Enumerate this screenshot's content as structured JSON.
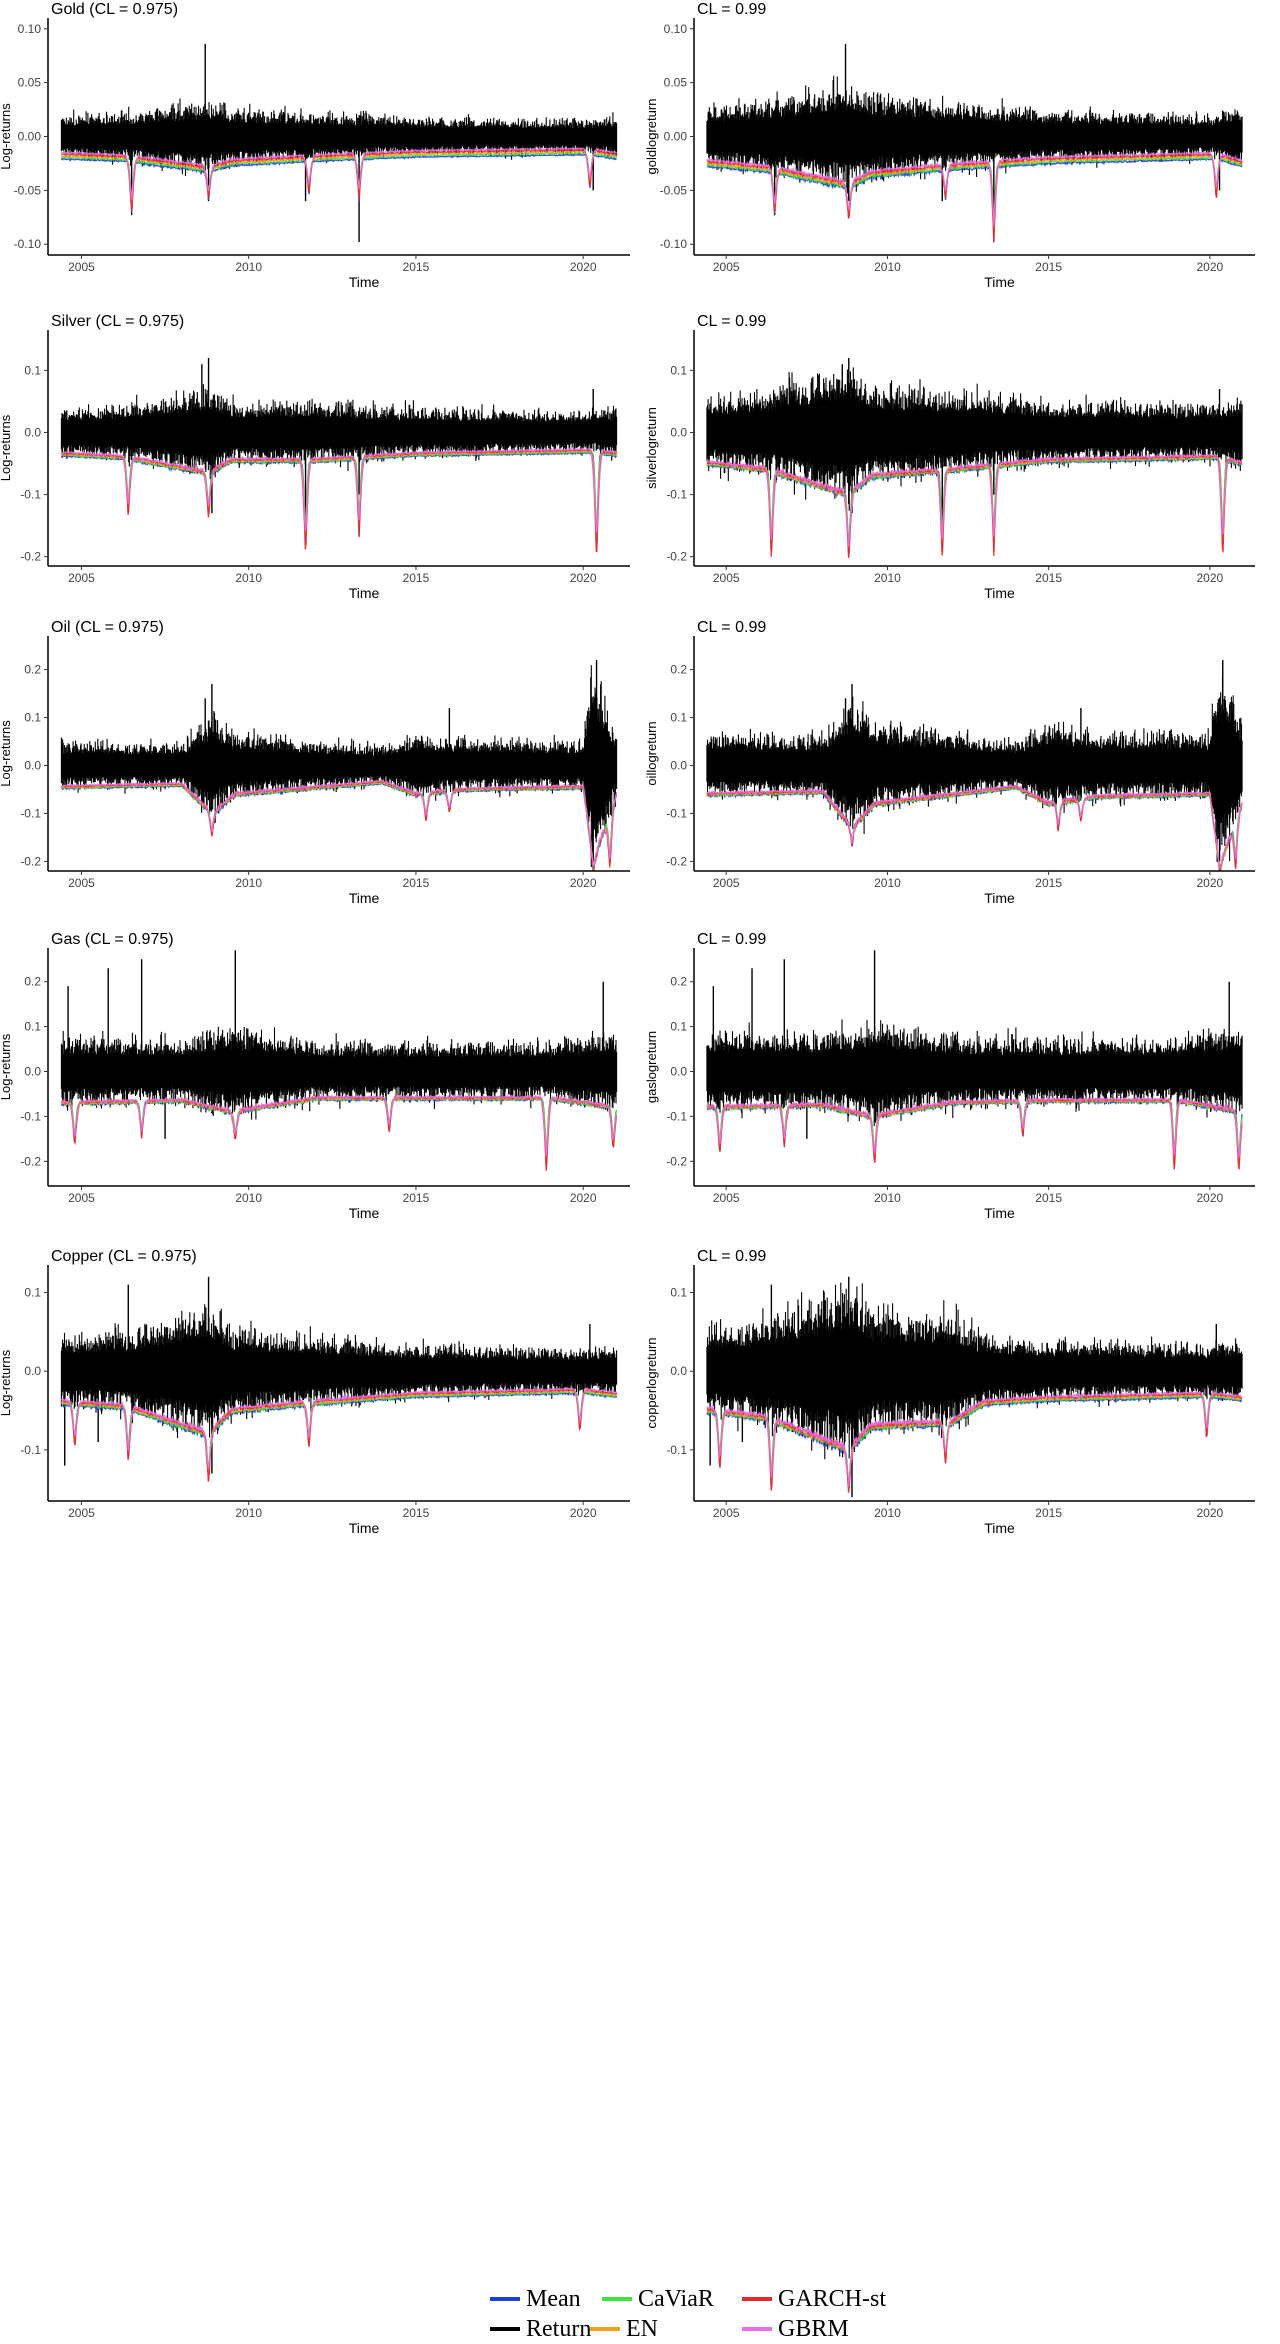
{
  "colors": {
    "Return": "#000000",
    "Mean": "#1f3fd6",
    "CaViaR": "#3fe23f",
    "EN": "#f5a020",
    "GARCH-st": "#e42a2a",
    "GBRM": "#e46ee6"
  },
  "legend": {
    "mean": "Mean",
    "caviar": "CaViaR",
    "garch": "GARCH-st",
    "return": "Return",
    "en": "EN",
    "gbrm": "GBRM"
  },
  "chart_data": [
    {
      "type": "line",
      "title": "Gold (CL = 0.975)",
      "xlabel": "Time",
      "ylabel": "Log-returns",
      "xlim": [
        2004.0,
        2021.4
      ],
      "ylim": [
        -0.11,
        0.11
      ],
      "xticks": [
        2005,
        2010,
        2015,
        2020
      ],
      "yticks": [
        0.1,
        0.05,
        0.0,
        -0.05,
        -0.1
      ],
      "ytick_labels": [
        "0.10",
        "0.05",
        "0.00",
        "-0.05",
        "-0.10"
      ],
      "series_names": [
        "Return",
        "Mean",
        "CaViaR",
        "EN",
        "GARCH-st",
        "GBRM"
      ],
      "var_baseline": [
        [
          2004.5,
          -0.018
        ],
        [
          2006.3,
          -0.02
        ],
        [
          2008.8,
          -0.03
        ],
        [
          2009.5,
          -0.024
        ],
        [
          2012,
          -0.02
        ],
        [
          2015,
          -0.016
        ],
        [
          2020.2,
          -0.014
        ],
        [
          2021,
          -0.018
        ]
      ],
      "var_dips": [
        [
          2006.5,
          -0.075
        ],
        [
          2008.8,
          -0.06
        ],
        [
          2011.8,
          -0.055
        ],
        [
          2013.3,
          -0.06
        ],
        [
          2020.2,
          -0.05
        ]
      ],
      "return_spikes": [
        [
          2008.7,
          0.086
        ],
        [
          2008.8,
          -0.06
        ],
        [
          2013.3,
          -0.098
        ],
        [
          2011.7,
          -0.06
        ],
        [
          2006.5,
          -0.073
        ],
        [
          2020.3,
          -0.05
        ]
      ]
    },
    {
      "type": "line",
      "title": "CL = 0.99",
      "xlabel": "Time",
      "ylabel": "goldlogreturn",
      "xlim": [
        2004.0,
        2021.4
      ],
      "ylim": [
        -0.11,
        0.11
      ],
      "xticks": [
        2005,
        2010,
        2015,
        2020
      ],
      "yticks": [
        0.1,
        0.05,
        0.0,
        -0.05,
        -0.1
      ],
      "ytick_labels": [
        "0.10",
        "0.05",
        "0.00",
        "-0.05",
        "-0.10"
      ],
      "series_names": [
        "Return",
        "Mean",
        "CaViaR",
        "EN",
        "GARCH-st",
        "GBRM"
      ],
      "var_baseline": [
        [
          2004.5,
          -0.025
        ],
        [
          2006.3,
          -0.03
        ],
        [
          2008.8,
          -0.045
        ],
        [
          2009.5,
          -0.035
        ],
        [
          2012,
          -0.028
        ],
        [
          2015,
          -0.022
        ],
        [
          2020.2,
          -0.018
        ],
        [
          2021,
          -0.025
        ]
      ],
      "var_dips": [
        [
          2006.5,
          -0.075
        ],
        [
          2008.8,
          -0.08
        ],
        [
          2011.8,
          -0.06
        ],
        [
          2013.3,
          -0.1
        ],
        [
          2020.2,
          -0.06
        ]
      ],
      "return_spikes": [
        [
          2008.7,
          0.086
        ],
        [
          2008.8,
          -0.06
        ],
        [
          2013.3,
          -0.098
        ],
        [
          2011.7,
          -0.06
        ],
        [
          2006.5,
          -0.073
        ],
        [
          2020.3,
          -0.05
        ]
      ]
    },
    {
      "type": "line",
      "title": "Silver (CL = 0.975)",
      "xlabel": "Time",
      "ylabel": "Log-returns",
      "xlim": [
        2004.0,
        2021.4
      ],
      "ylim": [
        -0.215,
        0.165
      ],
      "xticks": [
        2005,
        2010,
        2015,
        2020
      ],
      "yticks": [
        0.1,
        0.0,
        -0.1,
        -0.2
      ],
      "ytick_labels": [
        "0.1",
        "0.0",
        "-0.1",
        "-0.2"
      ],
      "series_names": [
        "Return",
        "Mean",
        "CaViaR",
        "EN",
        "GARCH-st",
        "GBRM"
      ],
      "var_baseline": [
        [
          2004.5,
          -0.035
        ],
        [
          2006.3,
          -0.04
        ],
        [
          2008.8,
          -0.065
        ],
        [
          2009.5,
          -0.045
        ],
        [
          2012,
          -0.045
        ],
        [
          2015,
          -0.035
        ],
        [
          2020.2,
          -0.03
        ],
        [
          2021,
          -0.035
        ]
      ],
      "var_dips": [
        [
          2006.4,
          -0.14
        ],
        [
          2008.8,
          -0.14
        ],
        [
          2011.7,
          -0.2
        ],
        [
          2013.3,
          -0.17
        ],
        [
          2020.4,
          -0.21
        ]
      ],
      "return_spikes": [
        [
          2008.8,
          0.12
        ],
        [
          2008.6,
          0.11
        ],
        [
          2008.9,
          -0.13
        ],
        [
          2011.7,
          -0.15
        ],
        [
          2013.3,
          -0.1
        ],
        [
          2020.3,
          0.07
        ]
      ]
    },
    {
      "type": "line",
      "title": "CL = 0.99",
      "xlabel": "Time",
      "ylabel": "silverlogreturn",
      "xlim": [
        2004.0,
        2021.4
      ],
      "ylim": [
        -0.215,
        0.165
      ],
      "xticks": [
        2005,
        2010,
        2015,
        2020
      ],
      "yticks": [
        0.1,
        0.0,
        -0.1,
        -0.2
      ],
      "ytick_labels": [
        "0.1",
        "0.0",
        "-0.1",
        "-0.2"
      ],
      "series_names": [
        "Return",
        "Mean",
        "CaViaR",
        "EN",
        "GARCH-st",
        "GBRM"
      ],
      "var_baseline": [
        [
          2004.5,
          -0.05
        ],
        [
          2006.3,
          -0.06
        ],
        [
          2008.8,
          -0.1
        ],
        [
          2009.5,
          -0.07
        ],
        [
          2012,
          -0.06
        ],
        [
          2015,
          -0.045
        ],
        [
          2020.2,
          -0.04
        ],
        [
          2021,
          -0.05
        ]
      ],
      "var_dips": [
        [
          2006.4,
          -0.21
        ],
        [
          2008.8,
          -0.21
        ],
        [
          2011.7,
          -0.21
        ],
        [
          2013.3,
          -0.2
        ],
        [
          2020.4,
          -0.21
        ]
      ],
      "return_spikes": [
        [
          2008.8,
          0.12
        ],
        [
          2008.6,
          0.11
        ],
        [
          2008.9,
          -0.13
        ],
        [
          2011.7,
          -0.15
        ],
        [
          2013.3,
          -0.1
        ],
        [
          2020.3,
          0.07
        ]
      ]
    },
    {
      "type": "line",
      "title": "Oil (CL = 0.975)",
      "xlabel": "Time",
      "ylabel": "Log-returns",
      "xlim": [
        2004.0,
        2021.4
      ],
      "ylim": [
        -0.22,
        0.27
      ],
      "xticks": [
        2005,
        2010,
        2015,
        2020
      ],
      "yticks": [
        0.2,
        0.1,
        0.0,
        -0.1,
        -0.2
      ],
      "ytick_labels": [
        "0.2",
        "0.1",
        "0.0",
        "-0.1",
        "-0.2"
      ],
      "series_names": [
        "Return",
        "Mean",
        "CaViaR",
        "EN",
        "GARCH-st",
        "GBRM"
      ],
      "var_baseline": [
        [
          2004.5,
          -0.045
        ],
        [
          2008,
          -0.04
        ],
        [
          2008.9,
          -0.1
        ],
        [
          2009.6,
          -0.06
        ],
        [
          2014,
          -0.035
        ],
        [
          2015,
          -0.06
        ],
        [
          2016.5,
          -0.05
        ],
        [
          2020,
          -0.045
        ],
        [
          2020.3,
          -0.2
        ],
        [
          2021,
          -0.06
        ]
      ],
      "var_dips": [
        [
          2008.9,
          -0.15
        ],
        [
          2015.3,
          -0.12
        ],
        [
          2016,
          -0.1
        ],
        [
          2020.3,
          -0.22
        ],
        [
          2020.8,
          -0.22
        ]
      ],
      "return_spikes": [
        [
          2008.9,
          0.17
        ],
        [
          2008.7,
          0.14
        ],
        [
          2020.4,
          0.22
        ],
        [
          2020.3,
          -0.2
        ],
        [
          2009.1,
          -0.1
        ],
        [
          2016,
          0.12
        ]
      ]
    },
    {
      "type": "line",
      "title": "CL = 0.99",
      "xlabel": "Time",
      "ylabel": "oillogreturn",
      "xlim": [
        2004.0,
        2021.4
      ],
      "ylim": [
        -0.22,
        0.27
      ],
      "xticks": [
        2005,
        2010,
        2015,
        2020
      ],
      "yticks": [
        0.2,
        0.1,
        0.0,
        -0.1,
        -0.2
      ],
      "ytick_labels": [
        "0.2",
        "0.1",
        "0.0",
        "-0.1",
        "-0.2"
      ],
      "series_names": [
        "Return",
        "Mean",
        "CaViaR",
        "EN",
        "GARCH-st",
        "GBRM"
      ],
      "var_baseline": [
        [
          2004.5,
          -0.06
        ],
        [
          2008,
          -0.055
        ],
        [
          2008.9,
          -0.13
        ],
        [
          2009.6,
          -0.08
        ],
        [
          2014,
          -0.045
        ],
        [
          2015,
          -0.08
        ],
        [
          2016.5,
          -0.065
        ],
        [
          2020,
          -0.06
        ],
        [
          2020.3,
          -0.21
        ],
        [
          2021,
          -0.08
        ]
      ],
      "var_dips": [
        [
          2008.9,
          -0.17
        ],
        [
          2015.3,
          -0.14
        ],
        [
          2016,
          -0.12
        ],
        [
          2020.3,
          -0.22
        ],
        [
          2020.8,
          -0.22
        ]
      ],
      "return_spikes": [
        [
          2008.9,
          0.17
        ],
        [
          2008.7,
          0.14
        ],
        [
          2020.4,
          0.22
        ],
        [
          2020.3,
          -0.2
        ],
        [
          2009.1,
          -0.1
        ],
        [
          2016,
          0.12
        ]
      ]
    },
    {
      "type": "line",
      "title": "Gas (CL = 0.975)",
      "xlabel": "Time",
      "ylabel": "Log-returns",
      "xlim": [
        2004.0,
        2021.4
      ],
      "ylim": [
        -0.255,
        0.275
      ],
      "xticks": [
        2005,
        2010,
        2015,
        2020
      ],
      "yticks": [
        0.2,
        0.1,
        0.0,
        -0.1,
        -0.2
      ],
      "ytick_labels": [
        "0.2",
        "0.1",
        "0.0",
        "-0.1",
        "-0.2"
      ],
      "series_names": [
        "Return",
        "Mean",
        "CaViaR",
        "EN",
        "GARCH-st",
        "GBRM"
      ],
      "var_baseline": [
        [
          2004.5,
          -0.07
        ],
        [
          2008,
          -0.065
        ],
        [
          2009.5,
          -0.09
        ],
        [
          2012,
          -0.06
        ],
        [
          2015,
          -0.06
        ],
        [
          2019,
          -0.06
        ],
        [
          2021,
          -0.08
        ]
      ],
      "var_dips": [
        [
          2004.8,
          -0.17
        ],
        [
          2006.8,
          -0.15
        ],
        [
          2009.6,
          -0.16
        ],
        [
          2014.2,
          -0.14
        ],
        [
          2018.9,
          -0.23
        ],
        [
          2020.9,
          -0.18
        ]
      ],
      "return_spikes": [
        [
          2009.6,
          0.27
        ],
        [
          2006.8,
          0.25
        ],
        [
          2005.8,
          0.23
        ],
        [
          2004.6,
          0.19
        ],
        [
          2020.6,
          0.2
        ],
        [
          2007.5,
          -0.15
        ]
      ]
    },
    {
      "type": "line",
      "title": "CL = 0.99",
      "xlabel": "Time",
      "ylabel": "gaslogreturn",
      "xlim": [
        2004.0,
        2021.4
      ],
      "ylim": [
        -0.255,
        0.275
      ],
      "xticks": [
        2005,
        2010,
        2015,
        2020
      ],
      "yticks": [
        0.2,
        0.1,
        0.0,
        -0.1,
        -0.2
      ],
      "ytick_labels": [
        "0.2",
        "0.1",
        "0.0",
        "-0.1",
        "-0.2"
      ],
      "series_names": [
        "Return",
        "Mean",
        "CaViaR",
        "EN",
        "GARCH-st",
        "GBRM"
      ],
      "var_baseline": [
        [
          2004.5,
          -0.08
        ],
        [
          2008,
          -0.075
        ],
        [
          2009.5,
          -0.1
        ],
        [
          2012,
          -0.07
        ],
        [
          2015,
          -0.065
        ],
        [
          2019,
          -0.065
        ],
        [
          2021,
          -0.09
        ]
      ],
      "var_dips": [
        [
          2004.8,
          -0.19
        ],
        [
          2006.8,
          -0.17
        ],
        [
          2009.6,
          -0.21
        ],
        [
          2014.2,
          -0.15
        ],
        [
          2018.9,
          -0.23
        ],
        [
          2020.9,
          -0.23
        ]
      ],
      "return_spikes": [
        [
          2009.6,
          0.27
        ],
        [
          2006.8,
          0.25
        ],
        [
          2005.8,
          0.23
        ],
        [
          2004.6,
          0.19
        ],
        [
          2020.6,
          0.2
        ],
        [
          2007.5,
          -0.15
        ]
      ]
    },
    {
      "type": "line",
      "title": "Copper (CL = 0.975)",
      "xlabel": "Time",
      "ylabel": "Log-returns",
      "xlim": [
        2004.0,
        2021.4
      ],
      "ylim": [
        -0.165,
        0.135
      ],
      "xticks": [
        2005,
        2010,
        2015,
        2020
      ],
      "yticks": [
        0.1,
        0.0,
        -0.1
      ],
      "ytick_labels": [
        "0.1",
        "0.0",
        "-0.1"
      ],
      "series_names": [
        "Return",
        "Mean",
        "CaViaR",
        "EN",
        "GARCH-st",
        "GBRM"
      ],
      "var_baseline": [
        [
          2004.5,
          -0.04
        ],
        [
          2006.3,
          -0.045
        ],
        [
          2008.8,
          -0.08
        ],
        [
          2009.5,
          -0.05
        ],
        [
          2012,
          -0.04
        ],
        [
          2015,
          -0.03
        ],
        [
          2020,
          -0.025
        ],
        [
          2021,
          -0.03
        ]
      ],
      "var_dips": [
        [
          2004.8,
          -0.1
        ],
        [
          2006.4,
          -0.12
        ],
        [
          2008.8,
          -0.145
        ],
        [
          2011.8,
          -0.1
        ],
        [
          2019.9,
          -0.08
        ]
      ],
      "return_spikes": [
        [
          2008.8,
          0.12
        ],
        [
          2006.4,
          0.11
        ],
        [
          2008.9,
          -0.13
        ],
        [
          2004.5,
          -0.12
        ],
        [
          2005.5,
          -0.09
        ],
        [
          2020.2,
          0.06
        ]
      ]
    },
    {
      "type": "line",
      "title": "CL = 0.99",
      "xlabel": "Time",
      "ylabel": "copperlogreturn",
      "xlim": [
        2004.0,
        2021.4
      ],
      "ylim": [
        -0.165,
        0.135
      ],
      "xticks": [
        2005,
        2010,
        2015,
        2020
      ],
      "yticks": [
        0.1,
        0.0,
        -0.1
      ],
      "ytick_labels": [
        "0.1",
        "0.0",
        "-0.1"
      ],
      "series_names": [
        "Return",
        "Mean",
        "CaViaR",
        "EN",
        "GARCH-st",
        "GBRM"
      ],
      "var_baseline": [
        [
          2004.5,
          -0.05
        ],
        [
          2006.3,
          -0.06
        ],
        [
          2008.8,
          -0.1
        ],
        [
          2009.5,
          -0.07
        ],
        [
          2012,
          -0.065
        ],
        [
          2013,
          -0.04
        ],
        [
          2015,
          -0.035
        ],
        [
          2020,
          -0.03
        ],
        [
          2021,
          -0.035
        ]
      ],
      "var_dips": [
        [
          2004.8,
          -0.13
        ],
        [
          2006.4,
          -0.16
        ],
        [
          2008.8,
          -0.16
        ],
        [
          2011.8,
          -0.12
        ],
        [
          2019.9,
          -0.09
        ]
      ],
      "return_spikes": [
        [
          2008.8,
          0.12
        ],
        [
          2006.4,
          0.11
        ],
        [
          2008.9,
          -0.16
        ],
        [
          2004.5,
          -0.12
        ],
        [
          2005.5,
          -0.09
        ],
        [
          2020.2,
          0.06
        ]
      ]
    }
  ]
}
